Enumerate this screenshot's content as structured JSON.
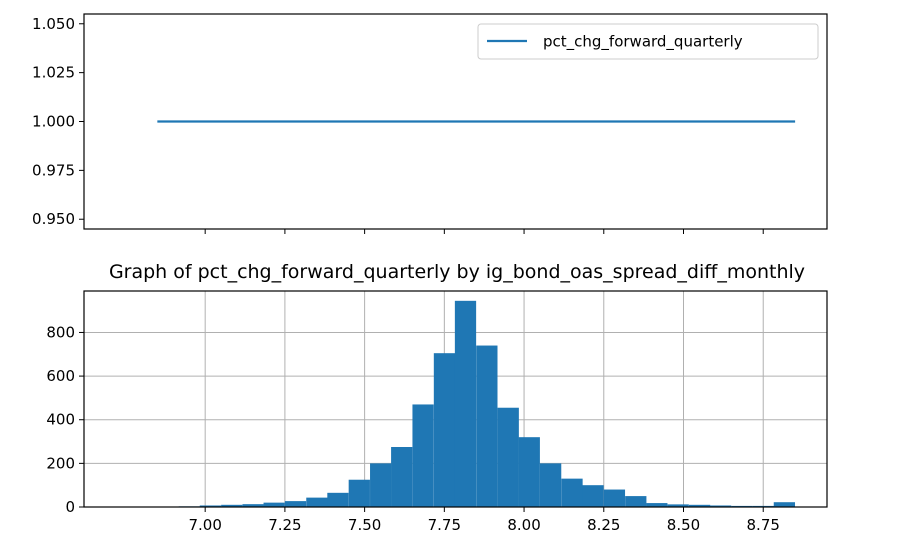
{
  "chart_data": [
    {
      "type": "line",
      "title": "",
      "xlabel": "",
      "ylabel": "",
      "series": [
        {
          "name": "pct_chg_forward_quarterly",
          "x": [
            6.85,
            8.85
          ],
          "values": [
            1.0,
            1.0
          ],
          "color": "#1f77b4"
        }
      ],
      "xlim": [
        6.62,
        8.95
      ],
      "ylim": [
        0.945,
        1.055
      ],
      "yticks": [
        0.95,
        0.975,
        1.0,
        1.025,
        1.05
      ],
      "ytick_labels": [
        "0.950",
        "0.975",
        "1.000",
        "1.025",
        "1.050"
      ],
      "xticks": [
        7.0,
        7.25,
        7.5,
        7.75,
        8.0,
        8.25,
        8.5,
        8.75
      ],
      "shared_x_with_next": true,
      "grid": false,
      "legend": {
        "position": "upper-right",
        "entries": [
          "pct_chg_forward_quarterly"
        ]
      }
    },
    {
      "type": "bar",
      "title": "Graph of pct_chg_forward_quarterly by ig_bond_oas_spread_diff_monthly",
      "xlabel": "",
      "ylabel": "",
      "bin_width": 0.0667,
      "bin_starts": [
        6.85,
        6.917,
        6.983,
        7.05,
        7.117,
        7.183,
        7.25,
        7.317,
        7.383,
        7.45,
        7.517,
        7.583,
        7.65,
        7.717,
        7.783,
        7.85,
        7.917,
        7.983,
        8.05,
        8.117,
        8.183,
        8.25,
        8.317,
        8.383,
        8.45,
        8.517,
        8.583,
        8.65,
        8.717,
        8.783
      ],
      "values": [
        1,
        3,
        7,
        10,
        13,
        20,
        27,
        43,
        65,
        125,
        200,
        275,
        470,
        705,
        945,
        740,
        455,
        320,
        200,
        130,
        100,
        80,
        50,
        18,
        12,
        10,
        7,
        5,
        5,
        22
      ],
      "color": "#1f77b4",
      "xlim": [
        6.62,
        8.95
      ],
      "ylim": [
        0,
        990
      ],
      "xticks": [
        7.0,
        7.25,
        7.5,
        7.75,
        8.0,
        8.25,
        8.5,
        8.75
      ],
      "xtick_labels": [
        "7.00",
        "7.25",
        "7.50",
        "7.75",
        "8.00",
        "8.25",
        "8.50",
        "8.75"
      ],
      "yticks": [
        0,
        200,
        400,
        600,
        800
      ],
      "ytick_labels": [
        "0",
        "200",
        "400",
        "600",
        "800"
      ],
      "grid": true
    }
  ]
}
